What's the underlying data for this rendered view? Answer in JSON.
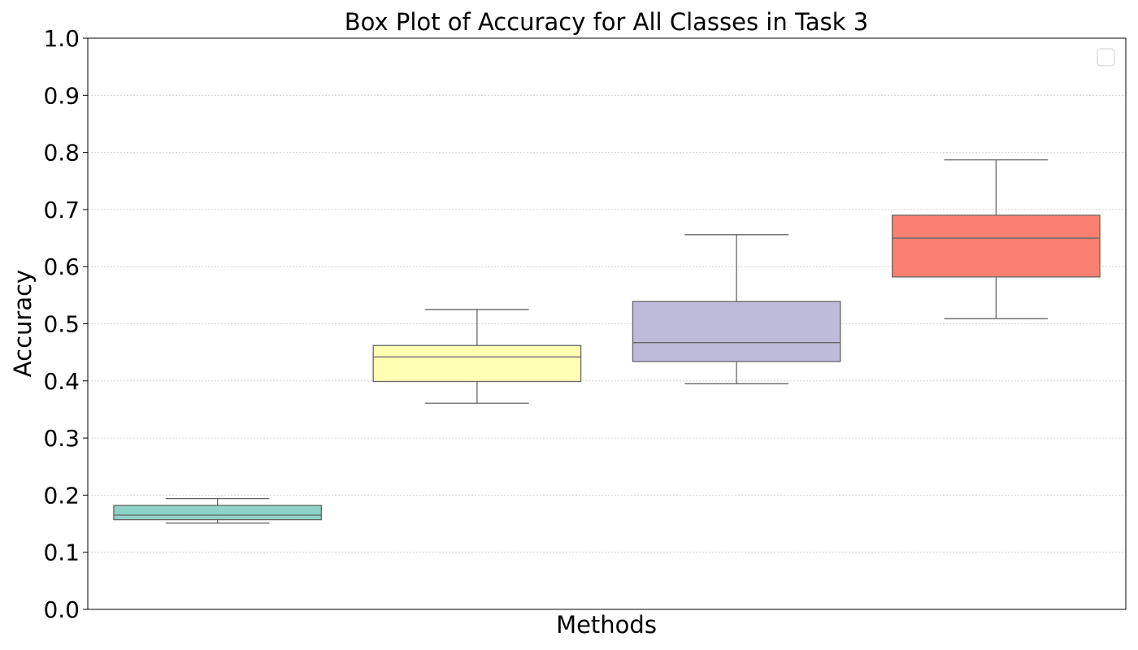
{
  "chart_data": {
    "type": "box",
    "title": "Box Plot of Accuracy for All Classes in Task 3",
    "xlabel": "Methods",
    "ylabel": "Accuracy",
    "ylim": [
      0.0,
      1.0
    ],
    "yticks": [
      "0.0",
      "0.1",
      "0.2",
      "0.3",
      "0.4",
      "0.5",
      "0.6",
      "0.7",
      "0.8",
      "0.9",
      "1.0"
    ],
    "grid": "horizontal dotted",
    "legend": "top-right (empty)",
    "boxes": [
      {
        "whisker_low": 0.151,
        "q1": 0.157,
        "median": 0.165,
        "q3": 0.182,
        "whisker_high": 0.194,
        "color": "#8dd3c7"
      },
      {
        "whisker_low": 0.361,
        "q1": 0.399,
        "median": 0.442,
        "q3": 0.462,
        "whisker_high": 0.525,
        "color": "#ffffb3"
      },
      {
        "whisker_low": 0.395,
        "q1": 0.434,
        "median": 0.467,
        "q3": 0.539,
        "whisker_high": 0.656,
        "color": "#bebada"
      },
      {
        "whisker_low": 0.509,
        "q1": 0.582,
        "median": 0.65,
        "q3": 0.69,
        "whisker_high": 0.787,
        "color": "#fb8072"
      }
    ]
  }
}
